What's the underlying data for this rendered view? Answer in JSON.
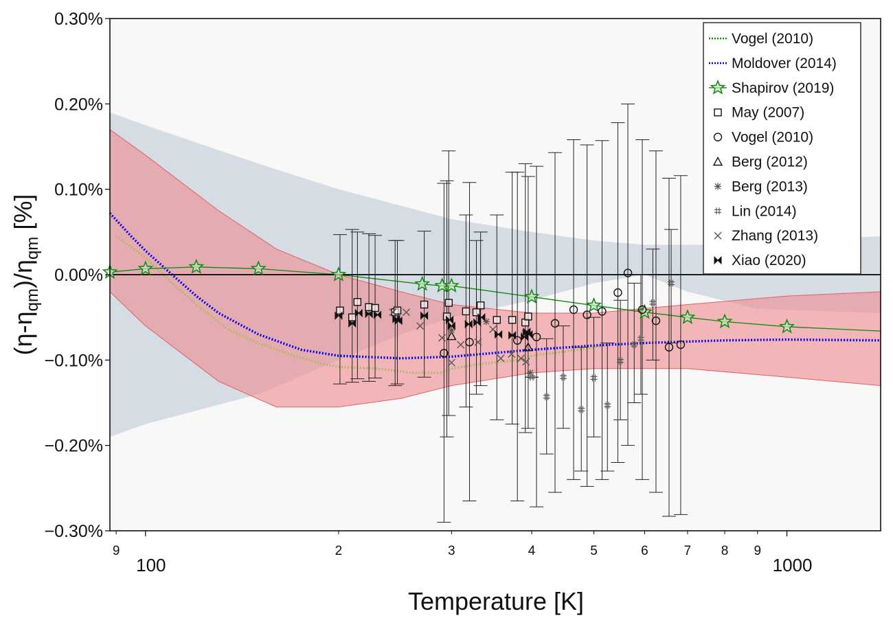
{
  "chart_data": {
    "type": "scatter",
    "title": "",
    "xlabel": "Temperature [K]",
    "ylabel_parts": [
      "(η-η",
      "qm",
      ")/η",
      "qm",
      " [%]"
    ],
    "xscale": "log",
    "xlim": [
      88,
      1400
    ],
    "ylim": [
      -0.3,
      0.3
    ],
    "y_ticks": [
      {
        "value": 0.3,
        "label": "0.30%"
      },
      {
        "value": 0.2,
        "label": "0.20%"
      },
      {
        "value": 0.1,
        "label": "0.10%"
      },
      {
        "value": 0.0,
        "label": "0.00%"
      },
      {
        "value": -0.1,
        "label": "−0.10%"
      },
      {
        "value": -0.2,
        "label": "−0.20%"
      },
      {
        "value": -0.3,
        "label": "−0.30%"
      }
    ],
    "x_major_ticks": [
      {
        "value": 100,
        "label": "100"
      },
      {
        "value": 1000,
        "label": "1000"
      }
    ],
    "x_minor_ticks": [
      {
        "value": 90,
        "label": "9"
      },
      {
        "value": 200,
        "label": "2"
      },
      {
        "value": 300,
        "label": "3"
      },
      {
        "value": 400,
        "label": "4"
      },
      {
        "value": 500,
        "label": "5"
      },
      {
        "value": 600,
        "label": "6"
      },
      {
        "value": 700,
        "label": "7"
      },
      {
        "value": 800,
        "label": "8"
      },
      {
        "value": 900,
        "label": "9"
      }
    ],
    "bands": [
      {
        "name": "gray uncertainty band",
        "color": "#ccd5dd",
        "upper": [
          [
            88,
            0.19
          ],
          [
            100,
            0.175
          ],
          [
            150,
            0.13
          ],
          [
            200,
            0.1
          ],
          [
            300,
            0.065
          ],
          [
            400,
            0.05
          ],
          [
            500,
            0.04
          ],
          [
            600,
            0.035
          ],
          [
            800,
            0.035
          ],
          [
            1000,
            0.04
          ],
          [
            1400,
            0.045
          ]
        ],
        "lower": [
          [
            88,
            -0.19
          ],
          [
            100,
            -0.175
          ],
          [
            150,
            -0.14
          ],
          [
            200,
            -0.1
          ],
          [
            250,
            -0.07
          ],
          [
            300,
            -0.05
          ],
          [
            400,
            -0.03
          ],
          [
            500,
            -0.01
          ],
          [
            600,
            0.0
          ],
          [
            700,
            -0.02
          ],
          [
            900,
            -0.04
          ],
          [
            1400,
            -0.045
          ]
        ]
      },
      {
        "name": "red uncertainty band",
        "color": "#ee8a8f",
        "upper": [
          [
            88,
            0.17
          ],
          [
            100,
            0.14
          ],
          [
            130,
            0.075
          ],
          [
            160,
            0.03
          ],
          [
            200,
            0.0
          ],
          [
            250,
            -0.02
          ],
          [
            300,
            -0.035
          ],
          [
            400,
            -0.045
          ],
          [
            500,
            -0.045
          ],
          [
            700,
            -0.035
          ],
          [
            1000,
            -0.025
          ],
          [
            1400,
            -0.02
          ]
        ],
        "lower": [
          [
            88,
            -0.02
          ],
          [
            100,
            -0.06
          ],
          [
            130,
            -0.125
          ],
          [
            160,
            -0.155
          ],
          [
            200,
            -0.155
          ],
          [
            250,
            -0.145
          ],
          [
            300,
            -0.13
          ],
          [
            400,
            -0.115
          ],
          [
            500,
            -0.11
          ],
          [
            700,
            -0.11
          ],
          [
            1000,
            -0.12
          ],
          [
            1400,
            -0.13
          ]
        ]
      }
    ],
    "series": [
      {
        "name": "Vogel (2010)",
        "kind": "line",
        "style": "dotted",
        "color": "#b5b56a",
        "legend_color": "#0a8a0a",
        "points": [
          [
            90,
            0.045
          ],
          [
            100,
            0.02
          ],
          [
            110,
            -0.01
          ],
          [
            120,
            -0.035
          ],
          [
            135,
            -0.065
          ],
          [
            150,
            -0.08
          ],
          [
            170,
            -0.095
          ],
          [
            190,
            -0.105
          ],
          [
            200,
            -0.108
          ],
          [
            230,
            -0.11
          ],
          [
            260,
            -0.115
          ],
          [
            290,
            -0.115
          ],
          [
            300,
            -0.11
          ],
          [
            330,
            -0.105
          ],
          [
            380,
            -0.1
          ],
          [
            400,
            -0.095
          ],
          [
            450,
            -0.09
          ],
          [
            500,
            -0.085
          ],
          [
            520,
            -0.083
          ]
        ]
      },
      {
        "name": "Moldover (2014)",
        "kind": "line",
        "style": "dotted",
        "color": "#0000ee",
        "points": [
          [
            88,
            0.072
          ],
          [
            95,
            0.045
          ],
          [
            100,
            0.028
          ],
          [
            110,
            0.0
          ],
          [
            120,
            -0.025
          ],
          [
            130,
            -0.045
          ],
          [
            150,
            -0.07
          ],
          [
            175,
            -0.088
          ],
          [
            200,
            -0.095
          ],
          [
            250,
            -0.098
          ],
          [
            300,
            -0.096
          ],
          [
            400,
            -0.088
          ],
          [
            500,
            -0.083
          ],
          [
            600,
            -0.08
          ],
          [
            800,
            -0.077
          ],
          [
            1000,
            -0.076
          ],
          [
            1400,
            -0.077
          ]
        ]
      },
      {
        "name": "Shapirov (2019)",
        "kind": "line-marker",
        "marker": "star",
        "color": "#118811",
        "points": [
          [
            88,
            0.003
          ],
          [
            100,
            0.007
          ],
          [
            120,
            0.009
          ],
          [
            150,
            0.007
          ],
          [
            200,
            0.0
          ],
          [
            270,
            -0.011
          ],
          [
            290,
            -0.013
          ],
          [
            300,
            -0.013
          ],
          [
            400,
            -0.026
          ],
          [
            500,
            -0.036
          ],
          [
            600,
            -0.044
          ],
          [
            700,
            -0.05
          ],
          [
            800,
            -0.055
          ],
          [
            1000,
            -0.061
          ]
        ],
        "line_to": [
          1400,
          -0.066
        ]
      },
      {
        "name": "May (2007)",
        "kind": "marker",
        "marker": "square",
        "color": "#111111",
        "points": [
          [
            201,
            -0.042
          ],
          [
            210,
            -0.05
          ],
          [
            214,
            -0.032
          ],
          [
            223,
            -0.038
          ],
          [
            228,
            -0.039
          ],
          [
            245,
            -0.044
          ],
          [
            247,
            -0.042
          ],
          [
            272,
            -0.035
          ],
          [
            295,
            -0.049
          ],
          [
            297,
            -0.033
          ],
          [
            316,
            -0.043
          ],
          [
            328,
            -0.044
          ],
          [
            333,
            -0.036
          ],
          [
            353,
            -0.053
          ],
          [
            373,
            -0.053
          ],
          [
            391,
            -0.056
          ],
          [
            395,
            -0.049
          ]
        ],
        "error_ranges": [
          [
            -0.128,
            0.047
          ],
          [
            -0.126,
            0.053
          ],
          [
            -0.122,
            0.05
          ],
          [
            -0.125,
            0.048
          ],
          [
            -0.121,
            0.046
          ],
          [
            -0.13,
            0.04
          ],
          [
            -0.128,
            0.04
          ],
          [
            -0.12,
            0.051
          ],
          [
            -0.19,
            0.11
          ],
          [
            -0.165,
            0.145
          ],
          [
            -0.155,
            0.07
          ],
          [
            -0.14,
            0.04
          ],
          [
            -0.13,
            0.05
          ],
          [
            -0.17,
            0.07
          ],
          [
            -0.175,
            0.12
          ],
          [
            -0.185,
            0.13
          ],
          [
            -0.18,
            0.115
          ]
        ]
      },
      {
        "name": "Vogel (2010)",
        "kind": "marker",
        "marker": "circle",
        "color": "#111111",
        "points": [
          [
            292,
            -0.092
          ],
          [
            320,
            -0.079
          ],
          [
            380,
            -0.077
          ],
          [
            407,
            -0.073
          ],
          [
            435,
            -0.057
          ],
          [
            465,
            -0.041
          ],
          [
            488,
            -0.047
          ],
          [
            515,
            -0.043
          ],
          [
            545,
            -0.021
          ],
          [
            565,
            0.002
          ],
          [
            595,
            -0.041
          ],
          [
            625,
            -0.054
          ],
          [
            655,
            -0.085
          ],
          [
            683,
            -0.082
          ]
        ],
        "error_ranges": [
          [
            -0.29,
            0.107
          ],
          [
            -0.265,
            0.108
          ],
          [
            -0.265,
            0.12
          ],
          [
            -0.272,
            0.127
          ],
          [
            -0.255,
            0.143
          ],
          [
            -0.24,
            0.158
          ],
          [
            -0.248,
            0.152
          ],
          [
            -0.24,
            0.157
          ],
          [
            -0.22,
            0.178
          ],
          [
            -0.2,
            0.2
          ],
          [
            -0.24,
            0.158
          ],
          [
            -0.255,
            0.145
          ],
          [
            -0.283,
            0.113
          ],
          [
            -0.281,
            0.116
          ]
        ]
      },
      {
        "name": "Berg (2012)",
        "kind": "marker",
        "marker": "triangle",
        "color": "#111111",
        "points": [
          [
            300,
            -0.072
          ],
          [
            395,
            -0.085
          ]
        ]
      },
      {
        "name": "Berg (2013)",
        "kind": "marker",
        "marker": "asterisk",
        "color": "#555555",
        "points": [
          [
            300,
            -0.065
          ],
          [
            340,
            -0.055
          ],
          [
            390,
            -0.068
          ],
          [
            398,
            -0.115
          ]
        ]
      },
      {
        "name": "Lin (2014)",
        "kind": "marker",
        "marker": "hash",
        "color": "#555555",
        "points": [
          [
            400,
            -0.12
          ],
          [
            422,
            -0.143
          ],
          [
            448,
            -0.12
          ],
          [
            478,
            -0.158
          ],
          [
            500,
            -0.121
          ],
          [
            525,
            -0.153
          ],
          [
            550,
            -0.101
          ],
          [
            578,
            -0.082
          ],
          [
            592,
            -0.075
          ],
          [
            618,
            -0.033
          ],
          [
            660,
            -0.01
          ]
        ],
        "error_ranges": [
          [
            -0.12,
            -0.12
          ],
          [
            -0.21,
            -0.075
          ],
          [
            -0.18,
            -0.06
          ],
          [
            -0.23,
            -0.085
          ],
          [
            -0.19,
            -0.05
          ],
          [
            -0.23,
            -0.08
          ],
          [
            -0.17,
            -0.03
          ],
          [
            -0.15,
            -0.01
          ],
          [
            -0.14,
            0.0
          ],
          [
            -0.1,
            0.03
          ],
          [
            -0.08,
            0.053
          ]
        ]
      },
      {
        "name": "Zhang (2013)",
        "kind": "marker",
        "marker": "x",
        "color": "#555555",
        "points": [
          [
            243,
            -0.044
          ],
          [
            255,
            -0.044
          ],
          [
            268,
            -0.06
          ],
          [
            290,
            -0.074
          ],
          [
            300,
            -0.103
          ],
          [
            310,
            -0.082
          ],
          [
            330,
            -0.079
          ],
          [
            348,
            -0.064
          ],
          [
            358,
            -0.098
          ],
          [
            372,
            -0.093
          ],
          [
            385,
            -0.098
          ],
          [
            392,
            -0.102
          ]
        ]
      },
      {
        "name": "Xiao (2020)",
        "kind": "marker",
        "marker": "bowtie",
        "color": "#111111",
        "points": [
          [
            200,
            -0.048
          ],
          [
            210,
            -0.057
          ],
          [
            215,
            -0.045
          ],
          [
            223,
            -0.046
          ],
          [
            230,
            -0.047
          ],
          [
            246,
            -0.052
          ],
          [
            248,
            -0.054
          ],
          [
            272,
            -0.048
          ],
          [
            298,
            -0.053
          ],
          [
            300,
            -0.06
          ],
          [
            319,
            -0.058
          ],
          [
            329,
            -0.056
          ],
          [
            334,
            -0.05
          ],
          [
            355,
            -0.07
          ],
          [
            373,
            -0.071
          ],
          [
            390,
            -0.073
          ],
          [
            393,
            -0.067
          ],
          [
            396,
            -0.07
          ]
        ]
      }
    ],
    "legend": {
      "placement": "top-right",
      "entries": [
        {
          "label": "Vogel (2010)",
          "kind": "line",
          "color": "#0a8a0a"
        },
        {
          "label": "Moldover (2014)",
          "kind": "line",
          "color": "#0000ee"
        },
        {
          "label": "Shapirov (2019)",
          "kind": "line-marker",
          "marker": "star",
          "color": "#118811"
        },
        {
          "label": "May (2007)",
          "kind": "marker",
          "marker": "square",
          "color": "#111111"
        },
        {
          "label": "Vogel (2010)",
          "kind": "marker",
          "marker": "circle",
          "color": "#111111"
        },
        {
          "label": "Berg (2012)",
          "kind": "marker",
          "marker": "triangle",
          "color": "#111111"
        },
        {
          "label": "Berg (2013)",
          "kind": "marker",
          "marker": "asterisk",
          "color": "#555555"
        },
        {
          "label": "Lin (2014)",
          "kind": "marker",
          "marker": "hash",
          "color": "#555555"
        },
        {
          "label": "Zhang (2013)",
          "kind": "marker",
          "marker": "x",
          "color": "#555555"
        },
        {
          "label": "Xiao (2020)",
          "kind": "marker",
          "marker": "bowtie",
          "color": "#111111"
        }
      ]
    },
    "grid": false,
    "zero_line": true
  }
}
